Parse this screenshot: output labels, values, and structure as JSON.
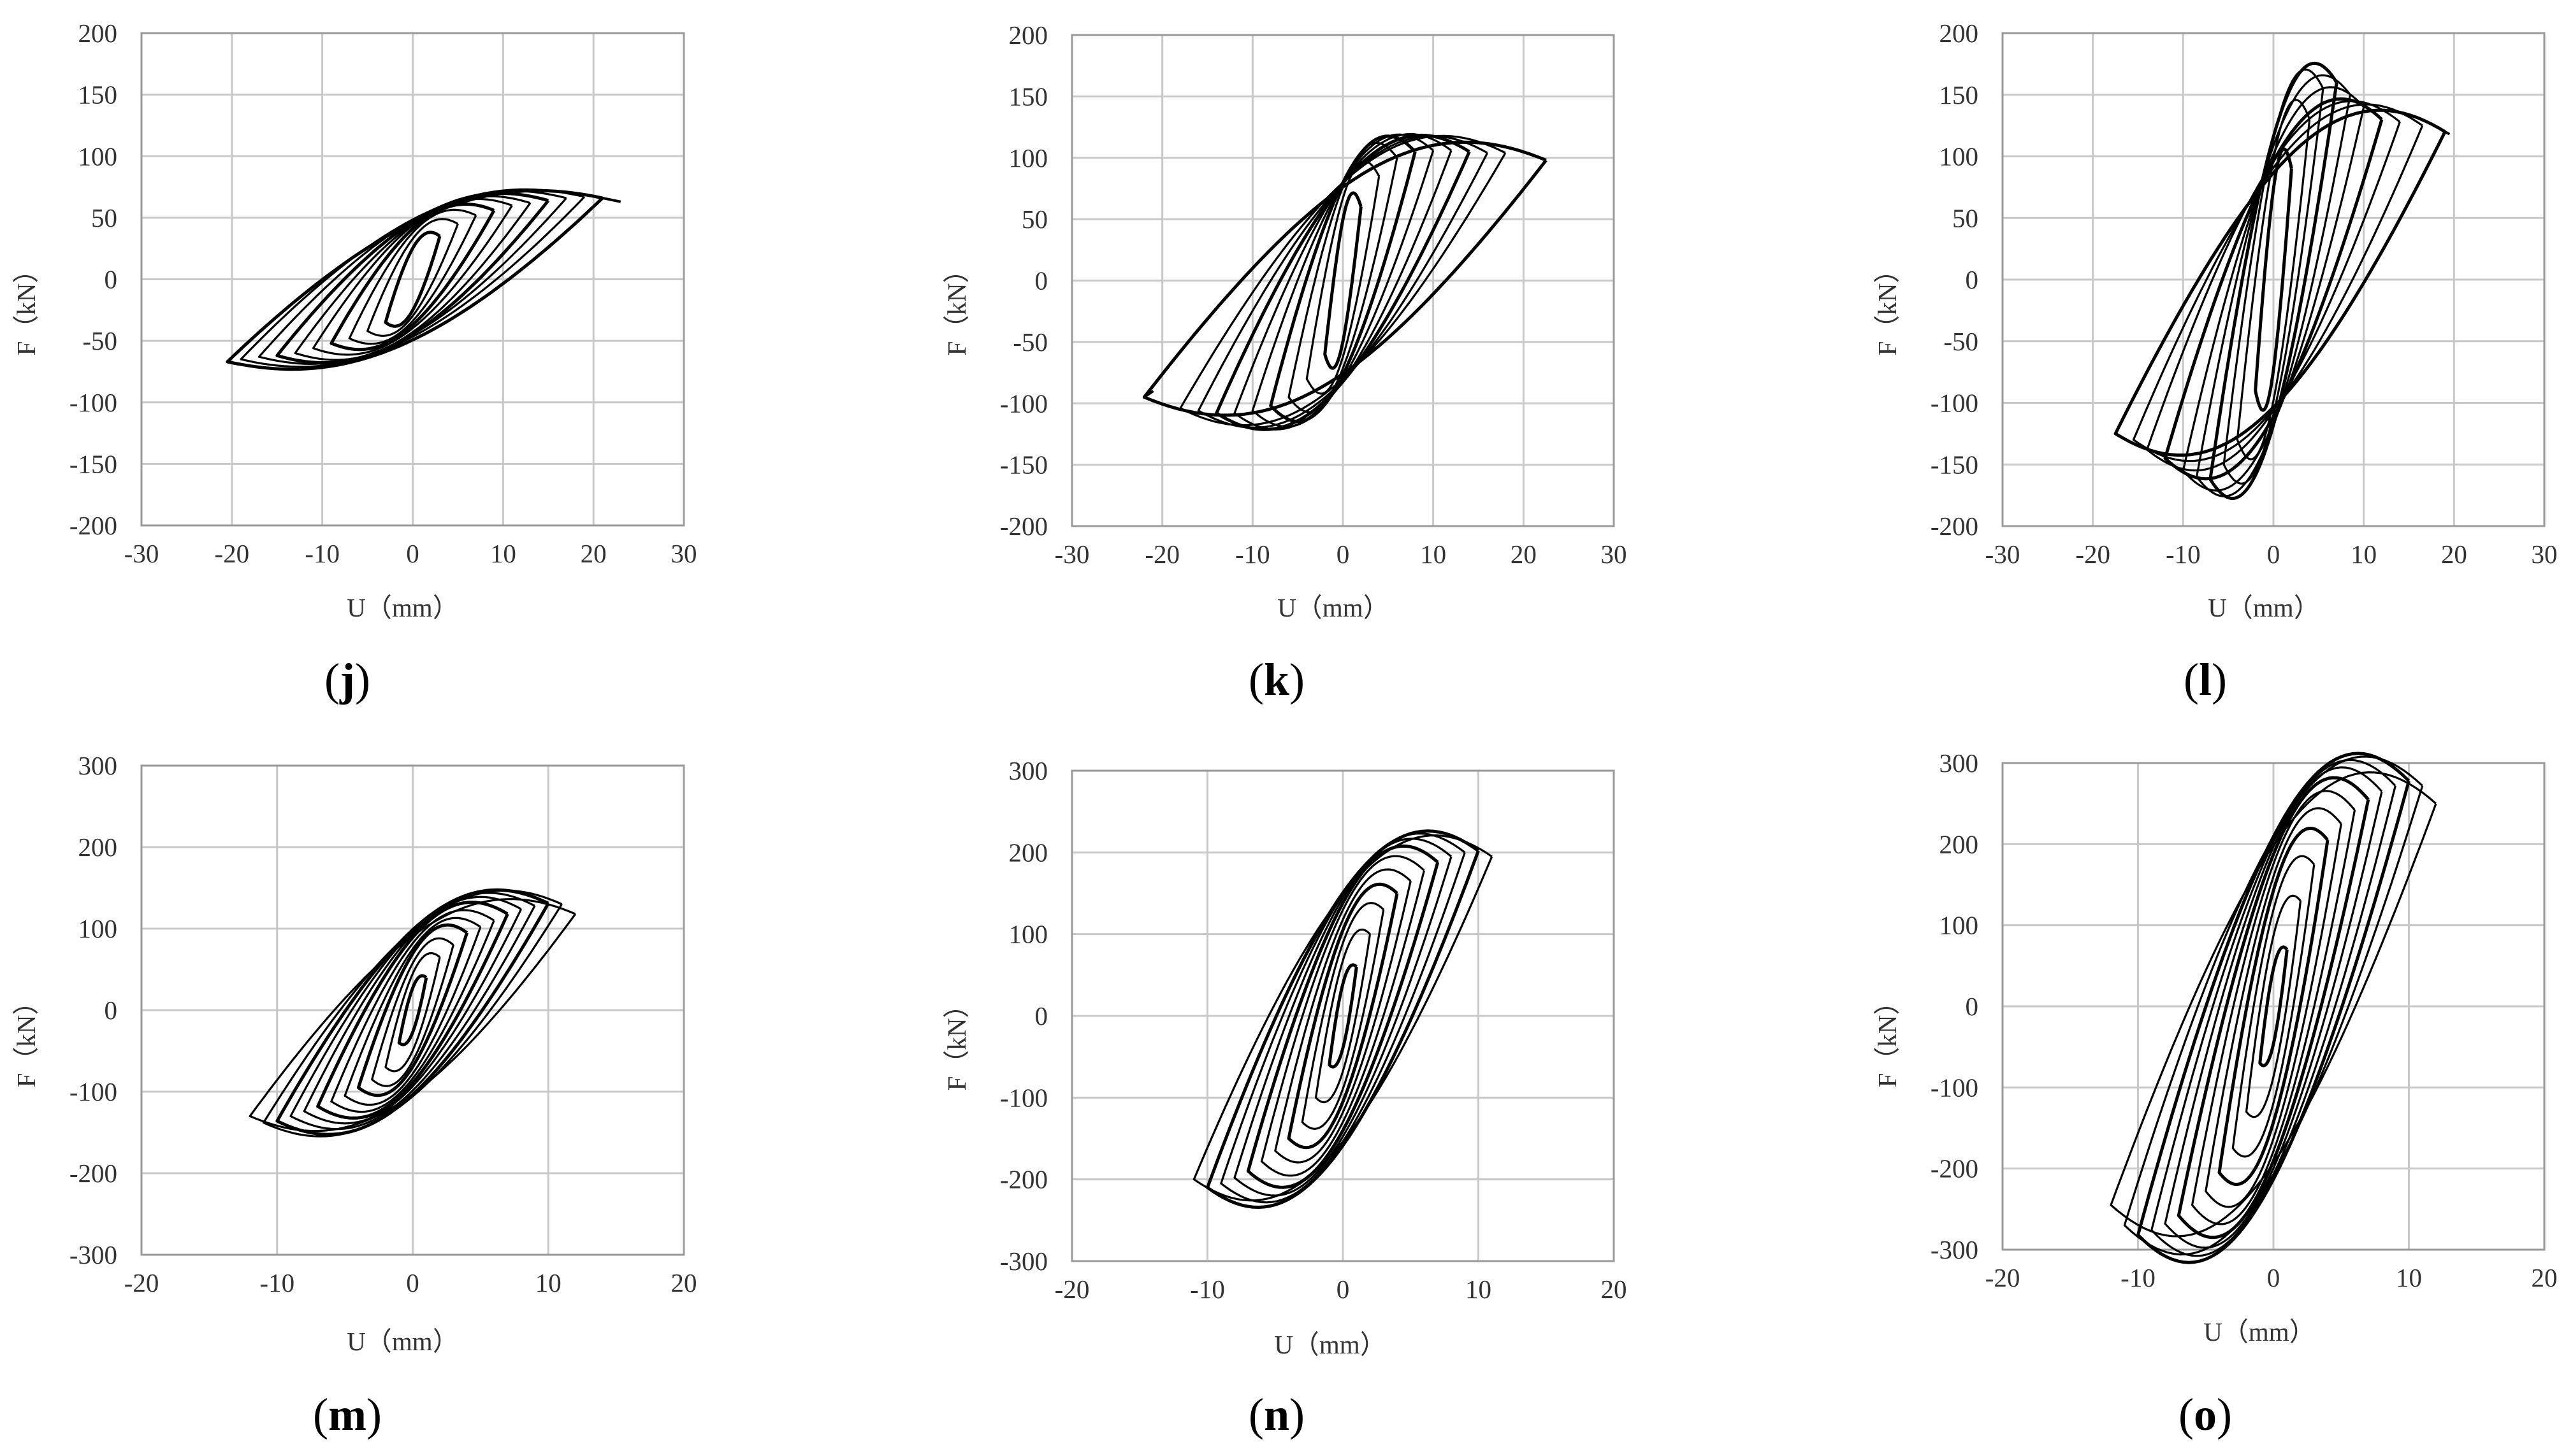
{
  "chart_data": [
    {
      "type": "line",
      "panel": "j",
      "xlabel": "U（mm）",
      "ylabel": "F（kN）",
      "xlim": [
        -30,
        30
      ],
      "ylim": [
        -200,
        200
      ],
      "xticks": [
        -30,
        -20,
        -10,
        0,
        10,
        20,
        30
      ],
      "yticks": [
        -200,
        -150,
        -100,
        -50,
        0,
        50,
        100,
        150,
        200
      ],
      "grid": true,
      "series": [
        {
          "loops": [
            {
              "umax": 3,
              "fmax": 35,
              "umin": -3,
              "fmin": -35,
              "pin": 12
            },
            {
              "umax": 5,
              "fmax": 45,
              "umin": -5,
              "fmin": -42,
              "pin": 15
            },
            {
              "umax": 7,
              "fmax": 52,
              "umin": -7,
              "fmin": -48,
              "pin": 17
            },
            {
              "umax": 9,
              "fmax": 56,
              "umin": -9,
              "fmin": -52,
              "pin": 19
            },
            {
              "umax": 11,
              "fmax": 60,
              "umin": -11,
              "fmin": -56,
              "pin": 20
            },
            {
              "umax": 13,
              "fmax": 62,
              "umin": -13,
              "fmin": -60,
              "pin": 21
            },
            {
              "umax": 15,
              "fmax": 64,
              "umin": -15,
              "fmin": -62,
              "pin": 22
            },
            {
              "umax": 17,
              "fmax": 66,
              "umin": -17,
              "fmin": -63,
              "pin": 22
            },
            {
              "umax": 19,
              "fmax": 67,
              "umin": -19,
              "fmin": -65,
              "pin": 23
            },
            {
              "umax": 21,
              "fmax": 66,
              "umin": -20.5,
              "fmin": -67,
              "pin": 23
            }
          ],
          "end": [
            23,
            63
          ]
        }
      ]
    },
    {
      "type": "line",
      "panel": "k",
      "xlabel": "U（mm）",
      "ylabel": "F（kN）",
      "xlim": [
        -30,
        30
      ],
      "ylim": [
        -200,
        200
      ],
      "xticks": [
        -30,
        -20,
        -10,
        0,
        10,
        20,
        30
      ],
      "yticks": [
        -200,
        -150,
        -100,
        -50,
        0,
        50,
        100,
        150,
        200
      ],
      "grid": true,
      "series": [
        {
          "loops": [
            {
              "umax": 2,
              "fmax": 60,
              "umin": -2,
              "fmin": -60,
              "pin": 35
            },
            {
              "umax": 4,
              "fmax": 85,
              "umin": -4,
              "fmin": -80,
              "pin": 40
            },
            {
              "umax": 6,
              "fmax": 100,
              "umin": -6,
              "fmin": -95,
              "pin": 42
            },
            {
              "umax": 8,
              "fmax": 105,
              "umin": -8,
              "fmin": -102,
              "pin": 44
            },
            {
              "umax": 10,
              "fmax": 106,
              "umin": -10,
              "fmin": -106,
              "pin": 45
            },
            {
              "umax": 12,
              "fmax": 106,
              "umin": -12,
              "fmin": -108,
              "pin": 46
            },
            {
              "umax": 14,
              "fmax": 105,
              "umin": -14,
              "fmin": -108,
              "pin": 46
            },
            {
              "umax": 16,
              "fmax": 104,
              "umin": -16,
              "fmin": -106,
              "pin": 47
            },
            {
              "umax": 18,
              "fmax": 104,
              "umin": -18,
              "fmin": -104,
              "pin": 47
            },
            {
              "umax": 22.5,
              "fmax": 98,
              "umin": -22,
              "fmin": -95,
              "pin": 48
            }
          ],
          "end": [
            -21,
            -90
          ]
        }
      ]
    },
    {
      "type": "line",
      "panel": "l",
      "xlabel": "U（mm）",
      "ylabel": "F（kN）",
      "xlim": [
        -30,
        30
      ],
      "ylim": [
        -200,
        200
      ],
      "xticks": [
        -30,
        -20,
        -10,
        0,
        10,
        20,
        30
      ],
      "yticks": [
        -200,
        -150,
        -100,
        -50,
        0,
        50,
        100,
        150,
        200
      ],
      "grid": true,
      "series": [
        {
          "loops": [
            {
              "umax": 2,
              "fmax": 90,
              "umin": -2,
              "fmin": -90,
              "pin": 50
            },
            {
              "umax": 4,
              "fmax": 130,
              "umin": -4,
              "fmin": -130,
              "pin": 55
            },
            {
              "umax": 5.5,
              "fmax": 155,
              "umin": -5.5,
              "fmin": -150,
              "pin": 57
            },
            {
              "umax": 7,
              "fmax": 160,
              "umin": -7,
              "fmin": -162,
              "pin": 58
            },
            {
              "umax": 8.5,
              "fmax": 150,
              "umin": -8.5,
              "fmin": -160,
              "pin": 58
            },
            {
              "umax": 10,
              "fmax": 140,
              "umin": -10,
              "fmin": -155,
              "pin": 58
            },
            {
              "umax": 12,
              "fmax": 130,
              "umin": -12,
              "fmin": -145,
              "pin": 58
            },
            {
              "umax": 14,
              "fmax": 128,
              "umin": -14,
              "fmin": -138,
              "pin": 58
            },
            {
              "umax": 16.5,
              "fmax": 125,
              "umin": -15.5,
              "fmin": -130,
              "pin": 58
            },
            {
              "umax": 19,
              "fmax": 120,
              "umin": -17.5,
              "fmin": -125,
              "pin": 58
            }
          ],
          "end": [
            19.5,
            118
          ]
        }
      ]
    },
    {
      "type": "line",
      "panel": "m",
      "xlabel": "U（mm）",
      "ylabel": "F（kN）",
      "xlim": [
        -20,
        20
      ],
      "ylim": [
        -300,
        300
      ],
      "xticks": [
        -20,
        -10,
        0,
        10,
        20
      ],
      "yticks": [
        -300,
        -200,
        -100,
        0,
        100,
        200,
        300
      ],
      "grid": true,
      "series": [
        {
          "loops": [
            {
              "umax": 1,
              "fmax": 40,
              "umin": -1,
              "fmin": -40,
              "pin": 10
            },
            {
              "umax": 2,
              "fmax": 65,
              "umin": -2,
              "fmin": -70,
              "pin": 20
            },
            {
              "umax": 3,
              "fmax": 80,
              "umin": -3,
              "fmin": -85,
              "pin": 30
            },
            {
              "umax": 4,
              "fmax": 95,
              "umin": -4,
              "fmin": -95,
              "pin": 35
            },
            {
              "umax": 5,
              "fmax": 102,
              "umin": -5,
              "fmin": -105,
              "pin": 40
            },
            {
              "umax": 6,
              "fmax": 110,
              "umin": -6,
              "fmin": -112,
              "pin": 45
            },
            {
              "umax": 7,
              "fmax": 118,
              "umin": -7,
              "fmin": -118,
              "pin": 50
            },
            {
              "umax": 8,
              "fmax": 124,
              "umin": -8,
              "fmin": -124,
              "pin": 52
            },
            {
              "umax": 9,
              "fmax": 128,
              "umin": -9,
              "fmin": -130,
              "pin": 55
            },
            {
              "umax": 10,
              "fmax": 131,
              "umin": -10,
              "fmin": -136,
              "pin": 57
            },
            {
              "umax": 11,
              "fmax": 130,
              "umin": -11,
              "fmin": -138,
              "pin": 58
            },
            {
              "umax": 12,
              "fmax": 118,
              "umin": -12,
              "fmin": -130,
              "pin": 60
            }
          ]
        }
      ]
    },
    {
      "type": "line",
      "panel": "n",
      "xlabel": "U（mm）",
      "ylabel": "F（kN）",
      "xlim": [
        -20,
        20
      ],
      "ylim": [
        -300,
        300
      ],
      "xticks": [
        -20,
        -10,
        0,
        10,
        20
      ],
      "yticks": [
        -300,
        -200,
        -100,
        0,
        100,
        200,
        300
      ],
      "grid": true,
      "series": [
        {
          "loops": [
            {
              "umax": 1,
              "fmax": 60,
              "umin": -1,
              "fmin": -60,
              "pin": 12
            },
            {
              "umax": 2,
              "fmax": 100,
              "umin": -2,
              "fmin": -100,
              "pin": 25
            },
            {
              "umax": 3,
              "fmax": 130,
              "umin": -3,
              "fmin": -130,
              "pin": 35
            },
            {
              "umax": 4,
              "fmax": 150,
              "umin": -4,
              "fmin": -150,
              "pin": 45
            },
            {
              "umax": 5,
              "fmax": 165,
              "umin": -5,
              "fmin": -165,
              "pin": 55
            },
            {
              "umax": 6,
              "fmax": 178,
              "umin": -6,
              "fmin": -178,
              "pin": 65
            },
            {
              "umax": 7,
              "fmax": 188,
              "umin": -7,
              "fmin": -190,
              "pin": 72
            },
            {
              "umax": 8,
              "fmax": 195,
              "umin": -8,
              "fmin": -198,
              "pin": 78
            },
            {
              "umax": 9,
              "fmax": 200,
              "umin": -9,
              "fmin": -205,
              "pin": 82
            },
            {
              "umax": 10,
              "fmax": 202,
              "umin": -10,
              "fmin": -210,
              "pin": 85
            },
            {
              "umax": 11,
              "fmax": 195,
              "umin": -11,
              "fmin": -200,
              "pin": 88
            }
          ]
        }
      ]
    },
    {
      "type": "line",
      "panel": "o",
      "xlabel": "U（mm）",
      "ylabel": "F（kN）",
      "xlim": [
        -20,
        20
      ],
      "ylim": [
        -300,
        300
      ],
      "xticks": [
        -20,
        -10,
        0,
        10,
        20
      ],
      "yticks": [
        -300,
        -200,
        -100,
        0,
        100,
        200,
        300
      ],
      "grid": true,
      "series": [
        {
          "loops": [
            {
              "umax": 1,
              "fmax": 70,
              "umin": -1,
              "fmin": -70,
              "pin": 15
            },
            {
              "umax": 2,
              "fmax": 130,
              "umin": -2,
              "fmin": -130,
              "pin": 30
            },
            {
              "umax": 3,
              "fmax": 175,
              "umin": -3,
              "fmin": -175,
              "pin": 45
            },
            {
              "umax": 4,
              "fmax": 205,
              "umin": -4,
              "fmin": -205,
              "pin": 60
            },
            {
              "umax": 5,
              "fmax": 225,
              "umin": -5,
              "fmin": -228,
              "pin": 75
            },
            {
              "umax": 6,
              "fmax": 242,
              "umin": -6,
              "fmin": -245,
              "pin": 88
            },
            {
              "umax": 7,
              "fmax": 255,
              "umin": -7,
              "fmin": -258,
              "pin": 98
            },
            {
              "umax": 8,
              "fmax": 265,
              "umin": -8,
              "fmin": -268,
              "pin": 106
            },
            {
              "umax": 9,
              "fmax": 272,
              "umin": -9,
              "fmin": -276,
              "pin": 112
            },
            {
              "umax": 10,
              "fmax": 278,
              "umin": -10,
              "fmin": -282,
              "pin": 118
            },
            {
              "umax": 11,
              "fmax": 272,
              "umin": -11,
              "fmin": -270,
              "pin": 122
            },
            {
              "umax": 12,
              "fmax": 250,
              "umin": -12,
              "fmin": -245,
              "pin": 125
            }
          ]
        }
      ]
    }
  ],
  "panel_labels": {
    "j": {
      "open": "(",
      "letter": "j",
      "close": ")"
    },
    "k": {
      "open": "(",
      "letter": "k",
      "close": ")"
    },
    "l": {
      "open": "(",
      "letter": "l",
      "close": ")"
    },
    "m": {
      "open": "(",
      "letter": "m",
      "close": ")"
    },
    "n": {
      "open": "(",
      "letter": "n",
      "close": ")"
    },
    "o": {
      "open": "(",
      "letter": "o",
      "close": ")"
    }
  }
}
